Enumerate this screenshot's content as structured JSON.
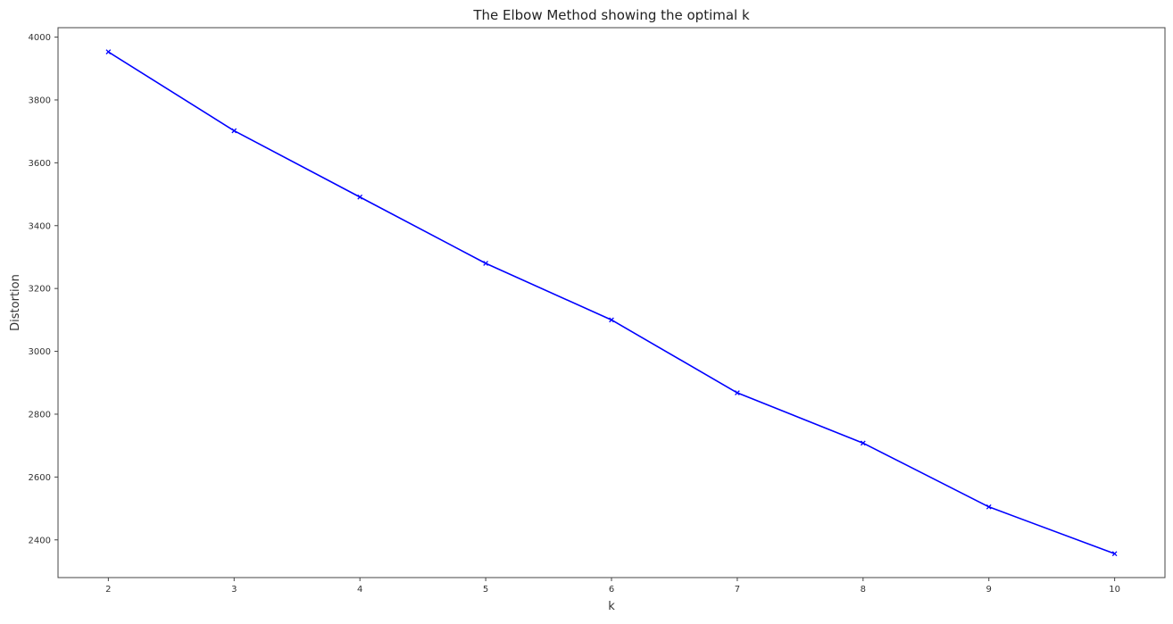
{
  "chart_data": {
    "type": "line",
    "title": "The Elbow Method showing the optimal k",
    "xlabel": "k",
    "ylabel": "Distortion",
    "x": [
      2,
      3,
      4,
      5,
      6,
      7,
      8,
      9,
      10
    ],
    "series": [
      {
        "values": [
          3953,
          3702,
          3491,
          3280,
          3100,
          2868,
          2708,
          2505,
          2356
        ],
        "color": "#0000ff",
        "marker": "x"
      }
    ],
    "xticks": [
      2,
      3,
      4,
      5,
      6,
      7,
      8,
      9,
      10
    ],
    "yticks": [
      2400,
      2600,
      2800,
      3000,
      3200,
      3400,
      3600,
      3800,
      4000
    ],
    "xlim": [
      1.6,
      10.4
    ],
    "ylim": [
      2280,
      4030
    ],
    "grid": false,
    "legend": "none"
  }
}
